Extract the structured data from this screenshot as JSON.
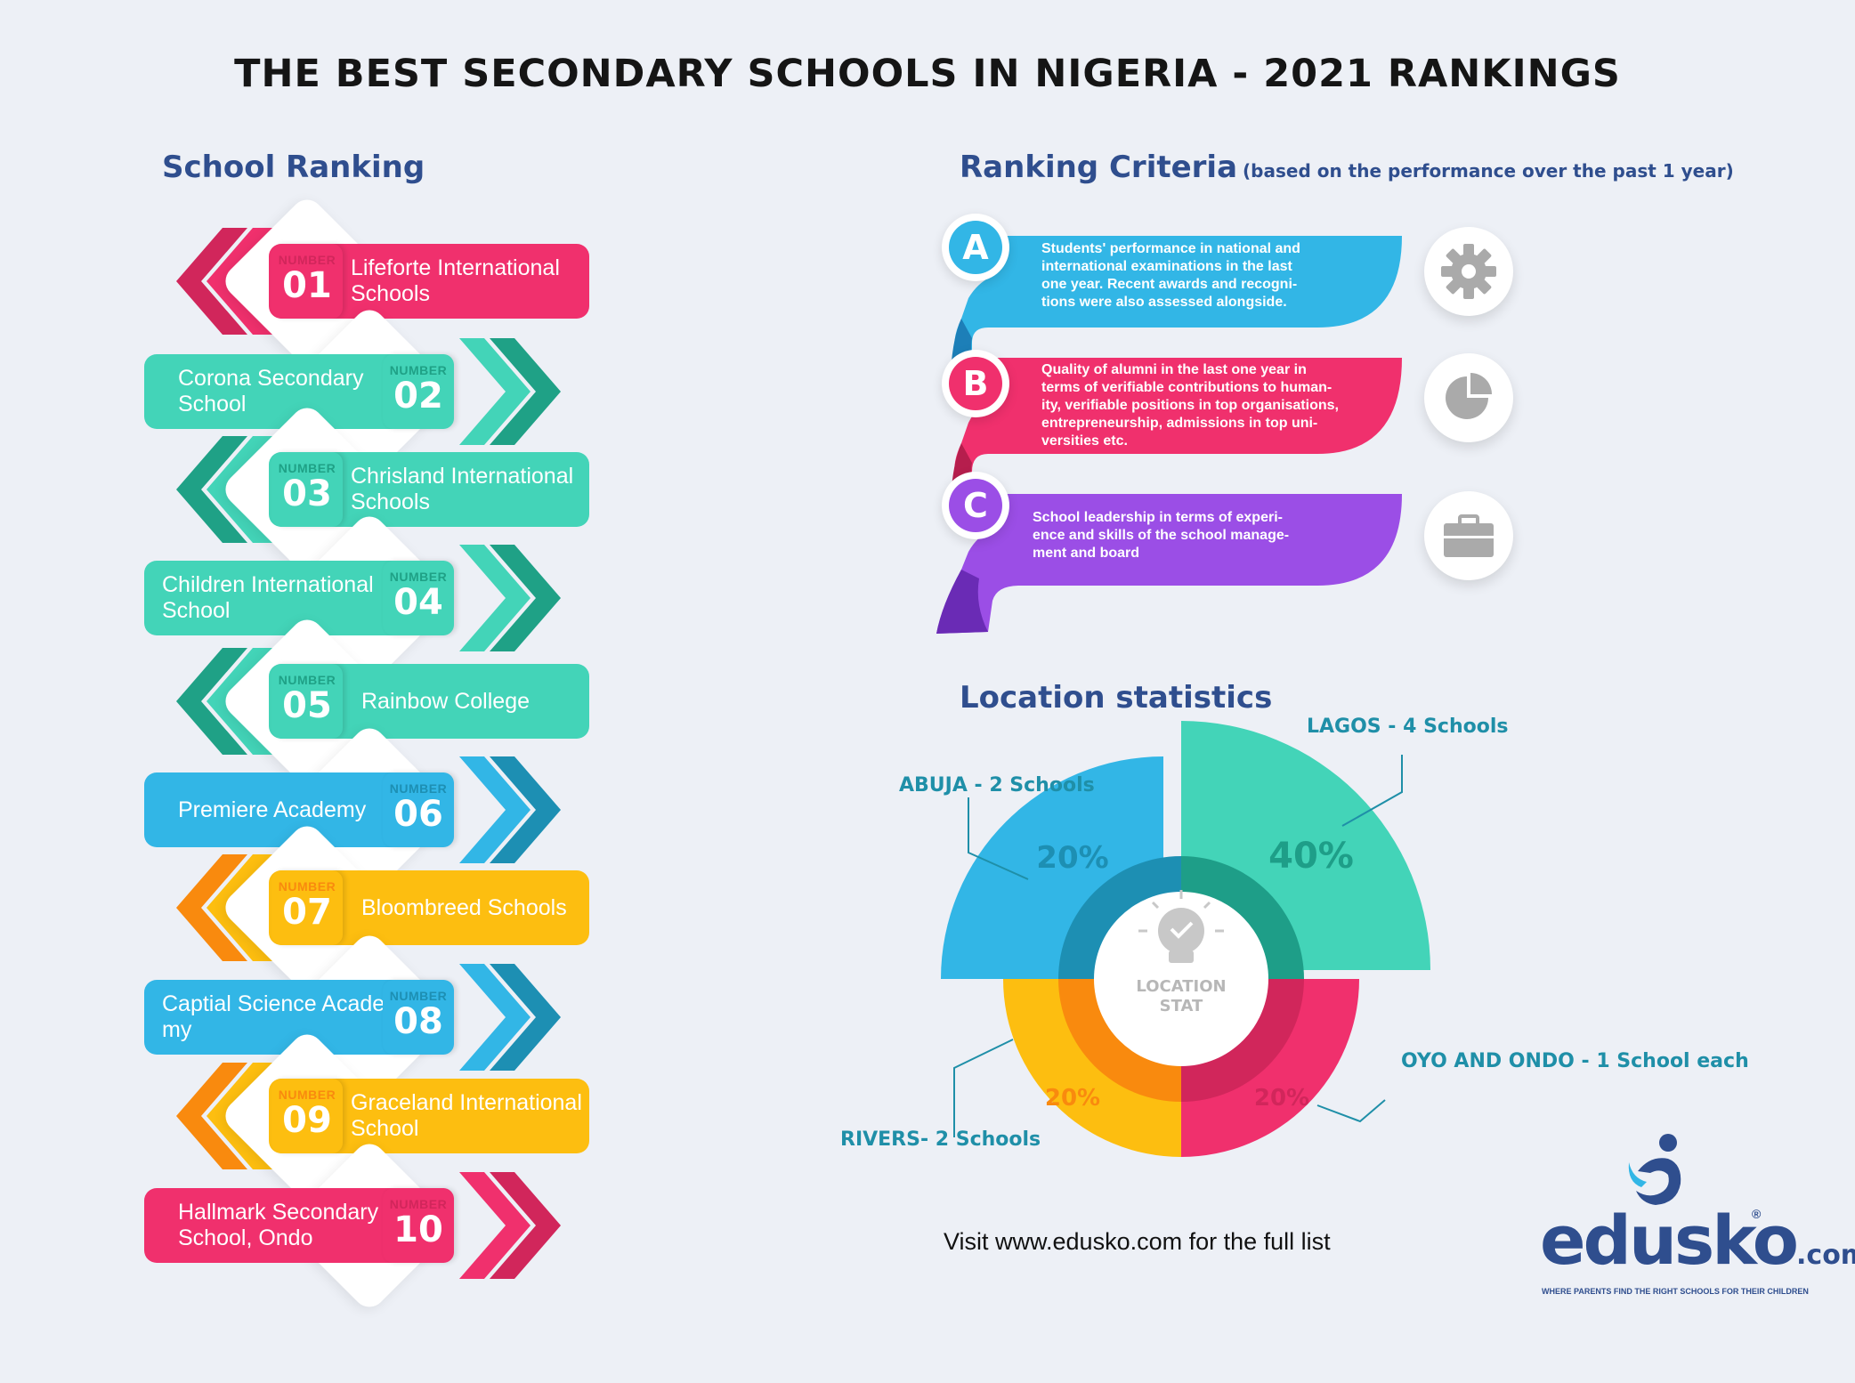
{
  "title": "THE BEST SECONDARY SCHOOLS IN NIGERIA - 2021 RANKINGS",
  "school_ranking": {
    "heading": "School Ranking",
    "number_label": "NUMBER",
    "items": [
      {
        "num": "01",
        "name_lines": [
          "Lifeforte International",
          "Schools"
        ],
        "color": "#f0306d",
        "dark": "#d1265b"
      },
      {
        "num": "02",
        "name_lines": [
          "Corona Secondary",
          "School"
        ],
        "color": "#43d4b8",
        "dark": "#1fa186"
      },
      {
        "num": "03",
        "name_lines": [
          "Chrisland International",
          "Schools"
        ],
        "color": "#43d4b8",
        "dark": "#1fa186"
      },
      {
        "num": "04",
        "name_lines": [
          "Children International",
          "School"
        ],
        "color": "#43d4b8",
        "dark": "#1fa186"
      },
      {
        "num": "05",
        "name_lines": [
          "Rainbow College"
        ],
        "color": "#43d4b8",
        "dark": "#1fa186"
      },
      {
        "num": "06",
        "name_lines": [
          "Premiere Academy"
        ],
        "color": "#32b6e6",
        "dark": "#1d8fb3"
      },
      {
        "num": "07",
        "name_lines": [
          "Bloombreed Schools"
        ],
        "color": "#fdbe10",
        "dark": "#f98a0e"
      },
      {
        "num": "08",
        "name_lines": [
          "Captial Science Acade",
          "my"
        ],
        "color": "#32b6e6",
        "dark": "#1d8fb3"
      },
      {
        "num": "09",
        "name_lines": [
          "Graceland International",
          "School"
        ],
        "color": "#fdbe10",
        "dark": "#f98a0e"
      },
      {
        "num": "10",
        "name_lines": [
          "Hallmark Secondary",
          "School, Ondo"
        ],
        "color": "#f0306d",
        "dark": "#d1265b"
      }
    ]
  },
  "ranking_criteria": {
    "heading": "Ranking Criteria",
    "subheading": "(based on the performance over the past 1 year)",
    "items": [
      {
        "letter": "A",
        "color": "#32b6e6",
        "icon": "gear-icon",
        "lines": [
          "Students' performance in national and",
          "international examinations in the last",
          "one year. Recent awards and recogni-",
          "tions were also assessed alongside."
        ]
      },
      {
        "letter": "B",
        "color": "#f0306d",
        "icon": "pie-chart-icon",
        "lines": [
          "Quality of alumni in the last one year in",
          "terms of verifiable contributions to human-",
          "ity, verifiable positions in top organisations,",
          "entrepreneurship, admissions in top uni-",
          "versities etc."
        ]
      },
      {
        "letter": "C",
        "color": "#9b4ee6",
        "icon": "briefcase-icon",
        "lines": [
          "School leadership in terms of experi-",
          "ence and skills of the school manage-",
          "ment and board"
        ]
      }
    ]
  },
  "location_statistics": {
    "heading": "Location statistics",
    "center_label_lines": [
      "LOCATION",
      "STAT"
    ],
    "center_icon": "lightbulb-check-icon"
  },
  "chart_data": {
    "type": "pie",
    "title": "Location statistics",
    "slices": [
      {
        "label": "LAGOS - 4 Schools",
        "value": 40,
        "display": "40%",
        "color": "#43d4b8"
      },
      {
        "label": "OYO AND ONDO - 1 School each",
        "value": 20,
        "display": "20%",
        "color": "#f0306d"
      },
      {
        "label": "RIVERS- 2 Schools",
        "value": 20,
        "display": "20%",
        "color": "#fdbe10"
      },
      {
        "label": "ABUJA - 2 Schools",
        "value": 20,
        "display": "20%",
        "color": "#32b6e6"
      }
    ]
  },
  "footer": {
    "visit_text": "Visit www.edusko.com for the full list",
    "logo_text": "edusko",
    "logo_suffix": ".com",
    "logo_tagline": "WHERE PARENTS FIND THE RIGHT SCHOOLS FOR THEIR CHILDREN"
  }
}
